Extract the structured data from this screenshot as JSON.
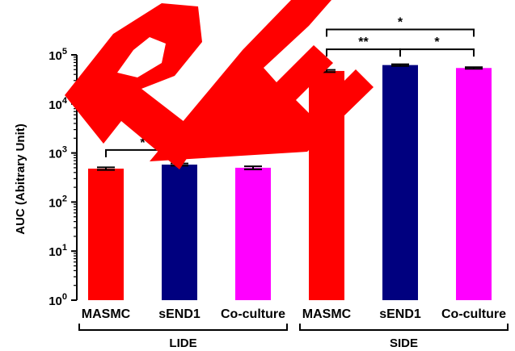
{
  "chart_data": {
    "type": "bar",
    "ylabel": "AUC (Abitrary Unit)",
    "yscale": "log",
    "ylim": [
      1,
      100000
    ],
    "yticks": [
      {
        "value": 1,
        "base": "10",
        "exp": "0"
      },
      {
        "value": 10,
        "base": "10",
        "exp": "1"
      },
      {
        "value": 100,
        "base": "10",
        "exp": "2"
      },
      {
        "value": 1000,
        "base": "10",
        "exp": "3"
      },
      {
        "value": 10000,
        "base": "10",
        "exp": "4"
      },
      {
        "value": 100000,
        "base": "10",
        "exp": "5"
      }
    ],
    "groups": [
      {
        "label": "LIDE",
        "start": 0,
        "end": 2
      },
      {
        "label": "SIDE",
        "start": 3,
        "end": 5
      }
    ],
    "bars": [
      {
        "category": "MASMC",
        "value": 480,
        "error": 30,
        "color": "#ff0000"
      },
      {
        "category": "sEND1",
        "value": 580,
        "error": 30,
        "color": "#00007f"
      },
      {
        "category": "Co-culture",
        "value": 500,
        "error": 35,
        "color": "#ff00ff"
      },
      {
        "category": "MASMC",
        "value": 47000,
        "error": 2500,
        "color": "#ff0000"
      },
      {
        "category": "sEND1",
        "value": 62000,
        "error": 2500,
        "color": "#00007f"
      },
      {
        "category": "Co-culture",
        "value": 54000,
        "error": 2000,
        "color": "#ff00ff"
      }
    ],
    "significance": [
      {
        "from": 0,
        "to": 1,
        "label": "*",
        "level": 1150
      },
      {
        "from": 3,
        "to": 4,
        "label": "**",
        "level": 130000
      },
      {
        "from": 4,
        "to": 5,
        "label": "*",
        "level": 130000
      },
      {
        "from": 3,
        "to": 5,
        "label": "*",
        "level": 330000
      }
    ],
    "grid": false,
    "legend": "none"
  },
  "watermark": "RE"
}
